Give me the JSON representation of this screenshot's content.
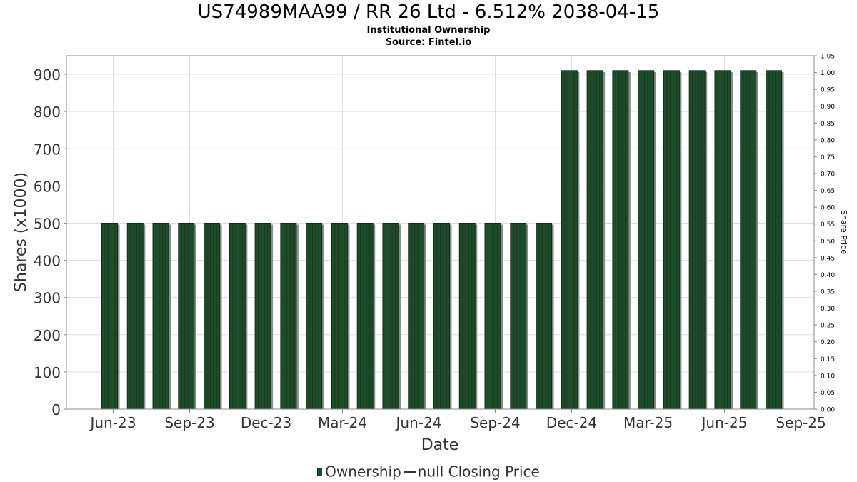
{
  "header": {
    "title": "US74989MAA99 / RR 26 Ltd - 6.512% 2038-04-15",
    "subtitle": "Institutional Ownership",
    "source": "Source: Fintel.io"
  },
  "legend": {
    "ownership_label": "Ownership",
    "price_label": "null Closing Price"
  },
  "colors": {
    "bar": "#1f4d2b",
    "bar_dark": "#0f2c18",
    "bar_shadow": "#8a8f88",
    "grid": "#dddddd",
    "axis": "#888888"
  },
  "chart_data": {
    "type": "bar",
    "xlabel": "Date",
    "ylabel": "Shares (x1000)",
    "y2label": "Share Price",
    "ylim": [
      0,
      950
    ],
    "yticks": [
      0,
      100,
      200,
      300,
      400,
      500,
      600,
      700,
      800,
      900
    ],
    "y2lim": [
      0,
      1.05
    ],
    "y2ticks": [
      "0.00",
      "0.05",
      "0.10",
      "0.15",
      "0.20",
      "0.25",
      "0.30",
      "0.35",
      "0.40",
      "0.45",
      "0.50",
      "0.55",
      "0.60",
      "0.65",
      "0.70",
      "0.75",
      "0.80",
      "0.85",
      "0.90",
      "0.95",
      "1.00",
      "1.05"
    ],
    "xticks": [
      "Jun-23",
      "Sep-23",
      "Dec-23",
      "Mar-24",
      "Jun-24",
      "Sep-24",
      "Dec-24",
      "Mar-25",
      "Jun-25",
      "Sep-25"
    ],
    "grid": true,
    "legend_position": "bottom",
    "series": [
      {
        "name": "Ownership",
        "values": [
          500,
          500,
          500,
          500,
          500,
          500,
          500,
          500,
          500,
          500,
          500,
          500,
          500,
          500,
          500,
          500,
          500,
          500,
          910,
          910,
          910,
          910,
          910,
          910,
          910,
          910,
          910
        ]
      }
    ]
  }
}
